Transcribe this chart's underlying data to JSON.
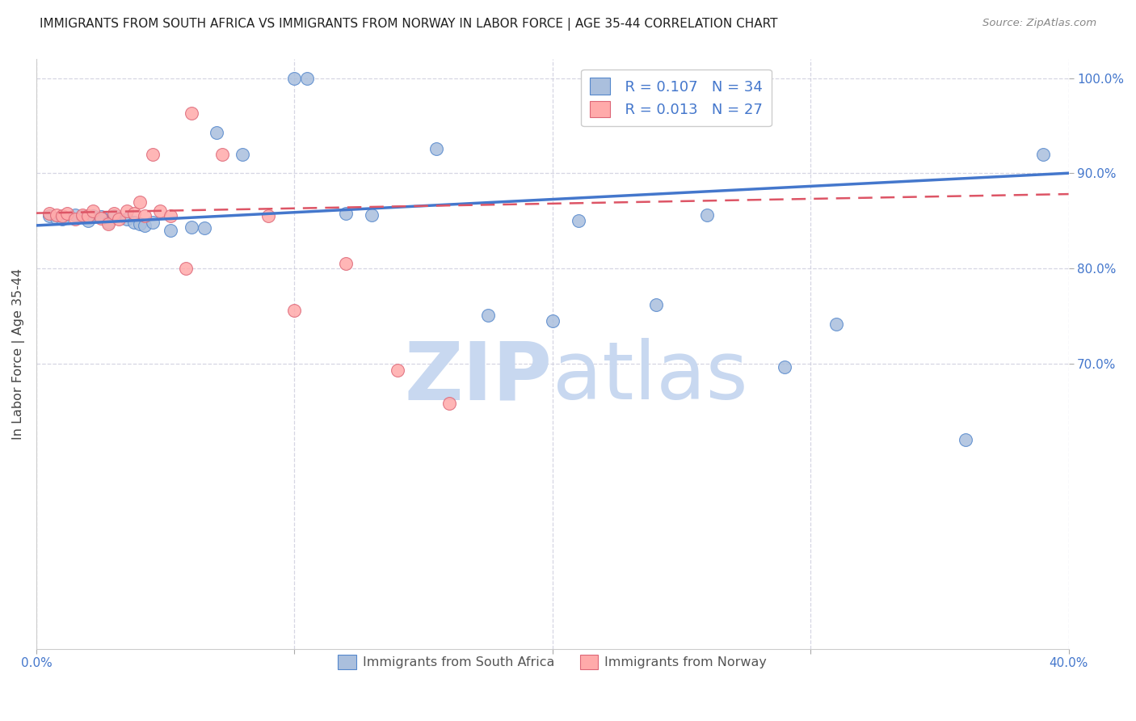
{
  "title": "IMMIGRANTS FROM SOUTH AFRICA VS IMMIGRANTS FROM NORWAY IN LABOR FORCE | AGE 35-44 CORRELATION CHART",
  "source": "Source: ZipAtlas.com",
  "ylabel": "In Labor Force | Age 35-44",
  "xlim": [
    0.0,
    0.4
  ],
  "ylim": [
    0.4,
    1.02
  ],
  "yticks": [
    1.0,
    0.9,
    0.8,
    0.7
  ],
  "ytick_labels": [
    "100.0%",
    "90.0%",
    "80.0%",
    "70.0%"
  ],
  "xticks": [
    0.0,
    0.1,
    0.2,
    0.3,
    0.4
  ],
  "xtick_labels": [
    "0.0%",
    "",
    "",
    "",
    "40.0%"
  ],
  "legend_blue_r": "R = 0.107",
  "legend_blue_n": "N = 34",
  "legend_pink_r": "R = 0.013",
  "legend_pink_n": "N = 27",
  "legend_label_blue": "Immigrants from South Africa",
  "legend_label_pink": "Immigrants from Norway",
  "blue_fill": "#AABFDD",
  "pink_fill": "#FFAAAA",
  "blue_edge": "#5588CC",
  "pink_edge": "#DD6677",
  "blue_line": "#4477CC",
  "pink_line": "#DD5566",
  "blue_scatter_x": [
    0.005,
    0.008,
    0.01,
    0.015,
    0.018,
    0.02,
    0.022,
    0.025,
    0.028,
    0.03,
    0.035,
    0.038,
    0.04,
    0.042,
    0.045,
    0.052,
    0.06,
    0.065,
    0.07,
    0.08,
    0.1,
    0.105,
    0.12,
    0.13,
    0.155,
    0.175,
    0.2,
    0.21,
    0.24,
    0.26,
    0.29,
    0.31,
    0.36,
    0.39
  ],
  "blue_scatter_y": [
    0.855,
    0.853,
    0.852,
    0.856,
    0.854,
    0.85,
    0.855,
    0.854,
    0.848,
    0.855,
    0.852,
    0.848,
    0.847,
    0.845,
    0.848,
    0.84,
    0.843,
    0.842,
    0.943,
    0.92,
    1.0,
    1.0,
    0.858,
    0.856,
    0.926,
    0.751,
    0.745,
    0.85,
    0.762,
    0.856,
    0.696,
    0.741,
    0.62,
    0.92
  ],
  "pink_scatter_x": [
    0.005,
    0.008,
    0.01,
    0.012,
    0.015,
    0.018,
    0.02,
    0.022,
    0.025,
    0.028,
    0.03,
    0.032,
    0.035,
    0.038,
    0.04,
    0.042,
    0.045,
    0.048,
    0.052,
    0.058,
    0.06,
    0.072,
    0.09,
    0.1,
    0.12,
    0.14,
    0.16
  ],
  "pink_scatter_y": [
    0.858,
    0.856,
    0.855,
    0.858,
    0.852,
    0.856,
    0.855,
    0.86,
    0.853,
    0.847,
    0.858,
    0.852,
    0.86,
    0.858,
    0.87,
    0.855,
    0.92,
    0.86,
    0.855,
    0.8,
    0.963,
    0.92,
    0.855,
    0.756,
    0.805,
    0.693,
    0.658
  ],
  "blue_trend": [
    0.845,
    0.9
  ],
  "pink_trend": [
    0.858,
    0.878
  ],
  "watermark_zip": "ZIP",
  "watermark_atlas": "atlas",
  "bg_color": "#FFFFFF",
  "grid_color": "#CCCCDD"
}
